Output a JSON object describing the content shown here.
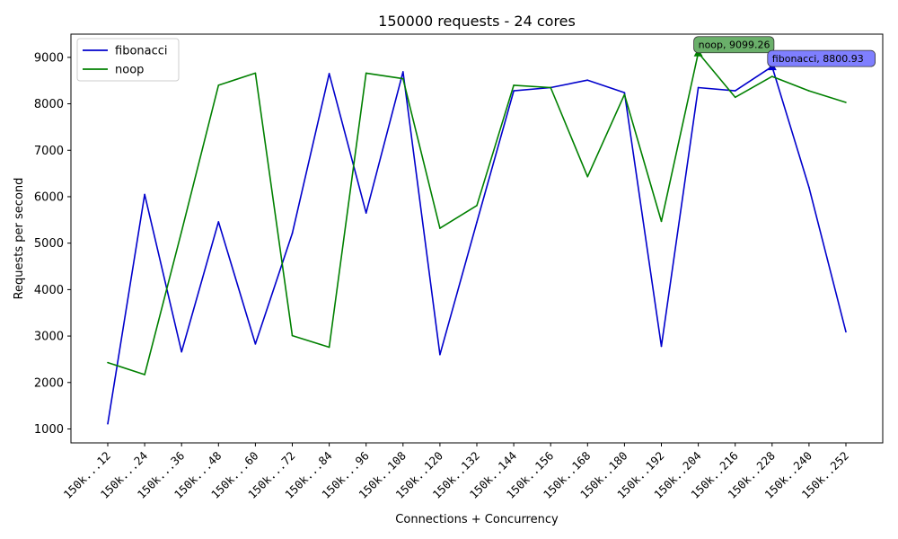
{
  "chart_data": {
    "type": "line",
    "title": "150000 requests - 24 cores",
    "xlabel": "Connections + Concurrency",
    "ylabel": "Requests per second",
    "categories": [
      "150k...12",
      "150k...24",
      "150k...36",
      "150k...48",
      "150k...60",
      "150k...72",
      "150k...84",
      "150k...96",
      "150k..108",
      "150k..120",
      "150k..132",
      "150k..144",
      "150k..156",
      "150k..168",
      "150k..180",
      "150k..192",
      "150k..204",
      "150k..216",
      "150k..228",
      "150k..240",
      "150k..252"
    ],
    "ylim": [
      700,
      9500
    ],
    "yticks": [
      1000,
      2000,
      3000,
      4000,
      5000,
      6000,
      7000,
      8000,
      9000
    ],
    "ytick_labels": [
      "1000",
      "2000",
      "3000",
      "4000",
      "5000",
      "6000",
      "7000",
      "8000",
      "9000"
    ],
    "grid": false,
    "legend_position": "upper-left",
    "series": [
      {
        "name": "fibonacci",
        "color": "#0000cc",
        "values": [
          1110,
          6050,
          2660,
          5460,
          2830,
          5210,
          8650,
          5650,
          8690,
          2600,
          5450,
          8280,
          8350,
          8510,
          8240,
          2780,
          8350,
          8280,
          8800.93,
          6200,
          3090
        ]
      },
      {
        "name": "noop",
        "color": "#008000",
        "values": [
          2430,
          2170,
          5250,
          8400,
          8660,
          3010,
          2760,
          8660,
          8540,
          5320,
          5810,
          8400,
          8350,
          6430,
          8200,
          5470,
          9099.26,
          8140,
          8590,
          8280,
          8030
        ]
      }
    ],
    "annotations": [
      {
        "series": "noop",
        "index": 16,
        "text": "noop, 9099.26",
        "box_color": "#6aaf6a"
      },
      {
        "series": "fibonacci",
        "index": 18,
        "text": "fibonacci, 8800.93",
        "box_color": "#7f7fff"
      }
    ]
  }
}
